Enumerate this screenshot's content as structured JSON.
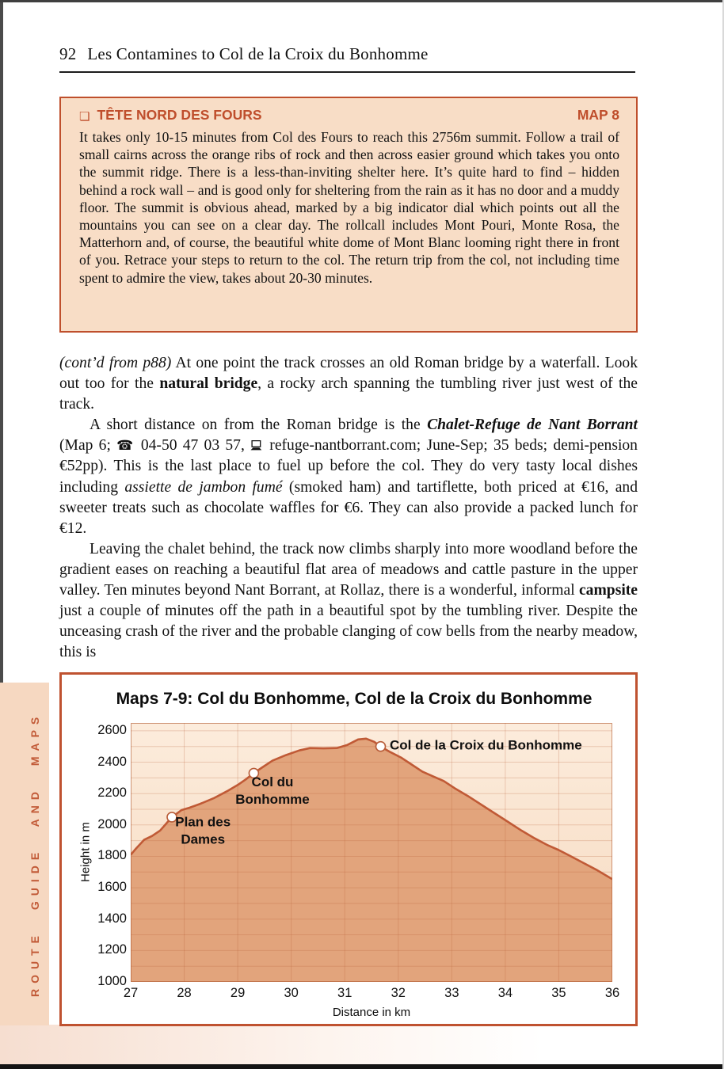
{
  "page": {
    "header": {
      "number": "92",
      "title": "Les Contamines to Col de la Croix du Bonhomme"
    },
    "info_box": {
      "icon": "❏",
      "title": "TÊTE NORD DES FOURS",
      "map_ref": "MAP 8",
      "body": "It takes only 10-15 minutes from Col des Fours to reach this 2756m summit. Follow a trail of small cairns across the orange ribs of rock and then across easier ground which takes you onto the summit ridge. There is a less-than-inviting shelter here. It’s quite hard to find – hidden behind a rock wall – and is good only for sheltering from the rain as it has no door and a muddy floor. The summit is obvious ahead, marked by a big indicator dial which points out all the mountains you can see on a clear day. The rollcall includes Mont Pouri, Monte Rosa, the Matterhorn and, of course, the beautiful white dome of Mont Blanc looming right there in front of you. Retrace your steps to return to the col. The return trip from the col, not including time spent to admire the view, takes about 20-30 minutes."
    },
    "paragraphs": [
      {
        "indent": false,
        "segments": [
          {
            "t": "(cont’d from p88)",
            "s": "i"
          },
          {
            "t": "  At one point the track crosses an old Roman bridge by a waterfall. Look out too for the ",
            "s": "n"
          },
          {
            "t": "natural bridge",
            "s": "b"
          },
          {
            "t": ", a rocky arch spanning the tumbling river just west of the track.",
            "s": "n"
          }
        ]
      },
      {
        "indent": true,
        "segments": [
          {
            "t": "A short distance on from the Roman bridge is the ",
            "s": "n"
          },
          {
            "t": "Chalet-Refuge de Nant Borrant",
            "s": "bi"
          },
          {
            "t": " (Map 6; ",
            "s": "n"
          },
          {
            "icon": "phone-icon",
            "glyph": "☎"
          },
          {
            "t": " 04-50 47 03 57, ",
            "s": "n"
          },
          {
            "icon": "website-icon"
          },
          {
            "t": " refuge-nantborrant.com; June-Sep; 35 beds; demi-pension €52pp). This is the last place to fuel up before the col. They do very tasty local dishes including ",
            "s": "n"
          },
          {
            "t": "assiette de jambon fumé",
            "s": "i"
          },
          {
            "t": " (smoked ham) and tartiflette, both priced at €16, and sweeter treats such as chocolate waffles for €6. They can also provide a packed lunch for €12.",
            "s": "n"
          }
        ]
      },
      {
        "indent": true,
        "segments": [
          {
            "t": "Leaving the chalet behind, the track now climbs sharply into more woodland before the gradient eases on reaching a beautiful flat area of meadows and cattle pasture in the upper valley. Ten minutes beyond Nant Borrant, at Rollaz, there is a wonderful, informal ",
            "s": "n"
          },
          {
            "t": "campsite",
            "s": "b"
          },
          {
            "t": " just a couple of minutes off the path in a beautiful spot by the tumbling river. Despite the unceasing crash of the river and the probable clanging of cow bells from the nearby meadow, this is",
            "s": "n"
          }
        ]
      }
    ],
    "sidebar_tab": {
      "label": "ROUTE GUIDE AND MAPS"
    }
  },
  "chart_data": {
    "type": "area",
    "title": "Maps 7-9: Col du Bonhomme, Col de la Croix du Bonhomme",
    "xlabel": "Distance in km",
    "ylabel": "Height in m",
    "xlim": [
      27,
      36
    ],
    "ylim": [
      1000,
      2650
    ],
    "x_ticks": [
      27,
      28,
      29,
      30,
      31,
      32,
      33,
      34,
      35,
      36
    ],
    "y_ticks": [
      1000,
      1200,
      1400,
      1600,
      1800,
      2000,
      2200,
      2400,
      2600
    ],
    "grid_step_y": 100,
    "grid": true,
    "x": [
      27.0,
      27.1,
      27.25,
      27.4,
      27.55,
      27.77,
      27.95,
      28.1,
      28.3,
      28.55,
      28.8,
      29.0,
      29.15,
      29.3,
      29.45,
      29.65,
      29.9,
      30.15,
      30.35,
      30.6,
      30.85,
      31.05,
      31.25,
      31.4,
      31.55,
      31.67,
      31.85,
      32.05,
      32.25,
      32.45,
      32.65,
      32.85,
      33.05,
      33.3,
      33.55,
      33.8,
      34.05,
      34.3,
      34.55,
      34.8,
      35.0,
      35.2,
      35.45,
      35.7,
      35.9,
      36.0
    ],
    "y": [
      1810,
      1850,
      1905,
      1930,
      1965,
      2050,
      2095,
      2110,
      2135,
      2170,
      2215,
      2255,
      2290,
      2330,
      2365,
      2410,
      2445,
      2475,
      2490,
      2488,
      2490,
      2510,
      2545,
      2550,
      2530,
      2500,
      2465,
      2430,
      2385,
      2340,
      2310,
      2280,
      2235,
      2185,
      2130,
      2075,
      2020,
      1965,
      1915,
      1870,
      1840,
      1805,
      1760,
      1715,
      1675,
      1655
    ],
    "markers": [
      {
        "x": 27.77,
        "y": 2050,
        "label": "Plan des Dames",
        "lines": [
          "Plan des",
          "Dames"
        ],
        "anchor": "middle",
        "label_x": 28.35,
        "label_y": 1992
      },
      {
        "x": 29.3,
        "y": 2330,
        "label": "Col du Bonhomme",
        "lines": [
          "Col du",
          "Bonhomme"
        ],
        "anchor": "middle",
        "label_x": 29.65,
        "label_y": 2247
      },
      {
        "x": 31.67,
        "y": 2500,
        "label": "Col de la Croix du Bonhomme",
        "lines": [
          "Col de la Croix du Bonhomme"
        ],
        "anchor": "start",
        "label_x": 31.84,
        "label_y": 2480
      }
    ],
    "colors": {
      "bg_top": "#fcecdc",
      "bg_bottom": "#f6d9bf",
      "fill": "#e2a47c",
      "line": "#c05a36",
      "grid": "rgba(185,90,50,0.25)",
      "plot_border": "rgba(176,92,52,0.6)",
      "marker_fill": "#ffffff",
      "marker_stroke": "#b85c38",
      "label_color": "#111111",
      "accent": "#bf4f2c"
    },
    "legend": null
  }
}
